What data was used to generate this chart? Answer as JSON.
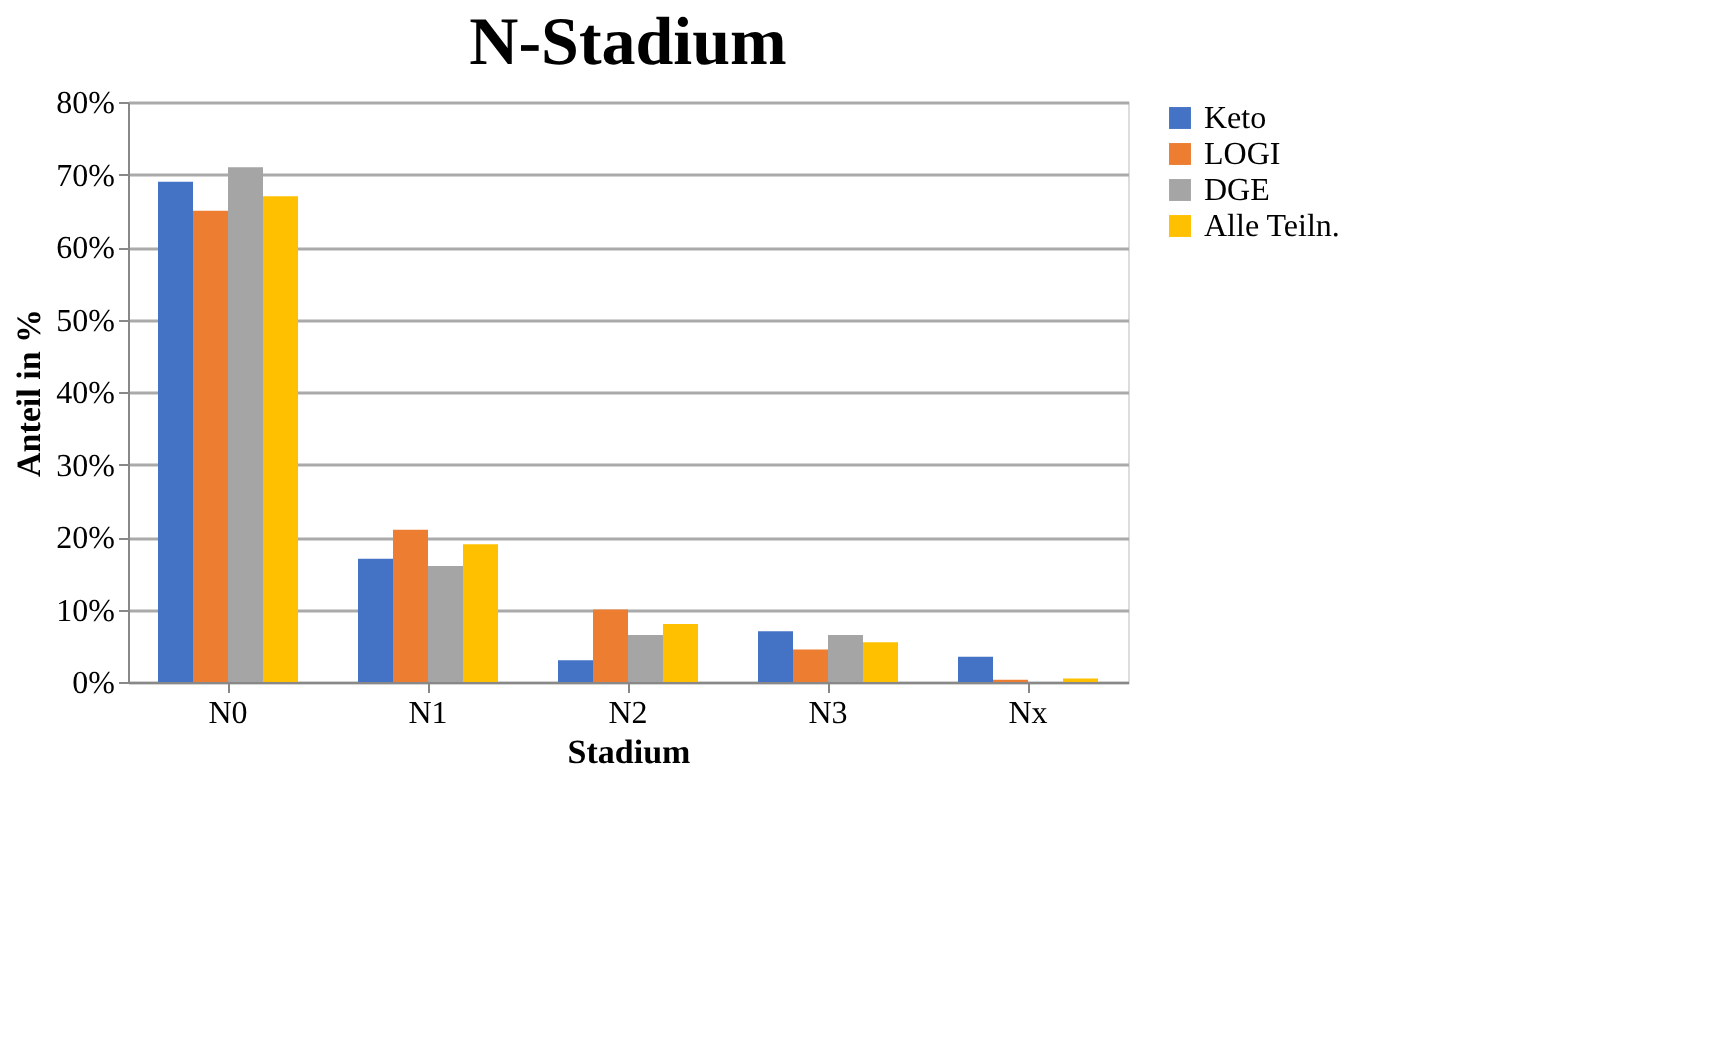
{
  "chart_data": {
    "type": "bar",
    "title": "N-Stadium",
    "xlabel": "Stadium",
    "ylabel": "Anteil in %",
    "categories": [
      "N0",
      "N1",
      "N2",
      "N3",
      "Nx"
    ],
    "series": [
      {
        "name": "Keto",
        "color": "#4472c4",
        "values": [
          69,
          17,
          3,
          7,
          3.5
        ]
      },
      {
        "name": "LOGI",
        "color": "#ed7d31",
        "values": [
          65,
          21,
          10,
          4.5,
          0.3
        ]
      },
      {
        "name": "DGE",
        "color": "#a5a5a5",
        "values": [
          71,
          16,
          6.5,
          6.5,
          0
        ]
      },
      {
        "name": "Alle Teiln.",
        "color": "#ffc000",
        "values": [
          67,
          19,
          8,
          5.5,
          0.5
        ]
      }
    ],
    "ylim": [
      0,
      80
    ],
    "yticks": [
      {
        "value": 0,
        "label": "0%"
      },
      {
        "value": 10,
        "label": "10%"
      },
      {
        "value": 20,
        "label": "20%"
      },
      {
        "value": 30,
        "label": "30%"
      },
      {
        "value": 40,
        "label": "40%"
      },
      {
        "value": 50,
        "label": "50%"
      },
      {
        "value": 60,
        "label": "60%"
      },
      {
        "value": 70,
        "label": "70%"
      },
      {
        "value": 80,
        "label": "80%"
      }
    ],
    "grid": "y",
    "legend": "right"
  }
}
